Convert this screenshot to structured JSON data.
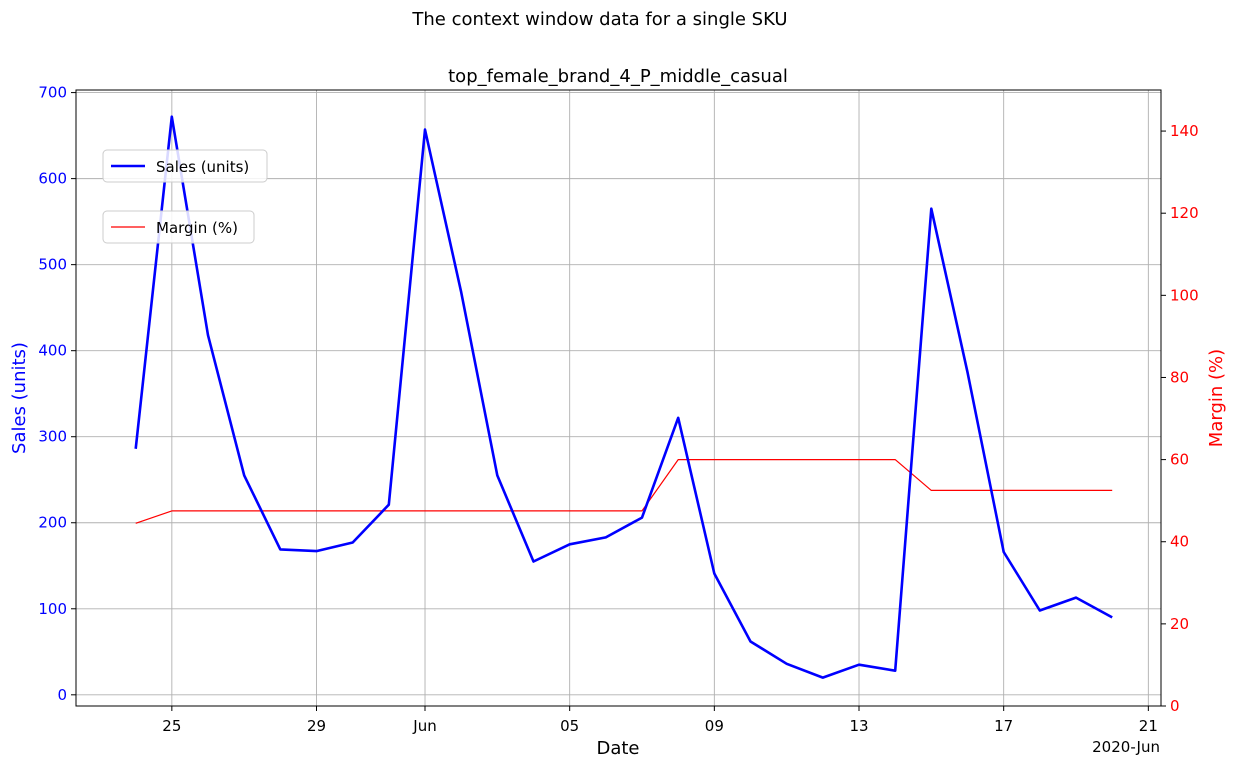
{
  "suptitle": "The context window data for a single SKU",
  "chart_data": {
    "type": "line",
    "title": "top_female_brand_4_P_middle_casual",
    "xlabel": "Date",
    "x_offset_label": "2020-Jun",
    "ylabel_left": "Sales (units)",
    "ylabel_right": "Margin (%)",
    "grid": true,
    "x_ticks": [
      {
        "date": "2020-05-25",
        "label": "25"
      },
      {
        "date": "2020-05-29",
        "label": "29"
      },
      {
        "date": "2020-06-01",
        "label": "Jun"
      },
      {
        "date": "2020-06-05",
        "label": "05"
      },
      {
        "date": "2020-06-09",
        "label": "09"
      },
      {
        "date": "2020-06-13",
        "label": "13"
      },
      {
        "date": "2020-06-17",
        "label": "17"
      },
      {
        "date": "2020-06-21",
        "label": "21"
      }
    ],
    "y_left_ticks": [
      0,
      100,
      200,
      300,
      400,
      500,
      600,
      700
    ],
    "y_right_ticks": [
      0,
      20,
      40,
      60,
      80,
      100,
      120,
      140
    ],
    "xlim": [
      "2020-05-22.3",
      "2020-06-21.4"
    ],
    "ylim_left": [
      -13,
      703
    ],
    "ylim_right": [
      0,
      150
    ],
    "x": [
      "2020-05-24",
      "2020-05-25",
      "2020-05-26",
      "2020-05-27",
      "2020-05-28",
      "2020-05-29",
      "2020-05-30",
      "2020-05-31",
      "2020-06-01",
      "2020-06-02",
      "2020-06-03",
      "2020-06-04",
      "2020-06-05",
      "2020-06-06",
      "2020-06-07",
      "2020-06-08",
      "2020-06-09",
      "2020-06-10",
      "2020-06-11",
      "2020-06-12",
      "2020-06-13",
      "2020-06-14",
      "2020-06-15",
      "2020-06-16",
      "2020-06-17",
      "2020-06-18",
      "2020-06-19",
      "2020-06-20"
    ],
    "series": [
      {
        "name": "Sales (units)",
        "axis": "left",
        "color": "#0000ff",
        "values": [
          286,
          672,
          418,
          255,
          169,
          167,
          177,
          221,
          657,
          468,
          255,
          155,
          175,
          183,
          206,
          322,
          141,
          62,
          36,
          20,
          35,
          28,
          565,
          375,
          166,
          98,
          113,
          90
        ]
      },
      {
        "name": "Margin (%)",
        "axis": "right",
        "color": "#ff0000",
        "values": [
          44.5,
          47.5,
          47.5,
          47.5,
          47.5,
          47.5,
          47.5,
          47.5,
          47.5,
          47.5,
          47.5,
          47.5,
          47.5,
          47.5,
          47.5,
          60,
          60,
          60,
          60,
          60,
          60,
          60,
          52.5,
          52.5,
          52.5,
          52.5,
          52.5,
          52.5
        ]
      }
    ],
    "legend": [
      {
        "label": "Sales (units)",
        "placement": "upper-left"
      },
      {
        "label": "Margin (%)",
        "placement": "upper-left, below"
      }
    ]
  }
}
